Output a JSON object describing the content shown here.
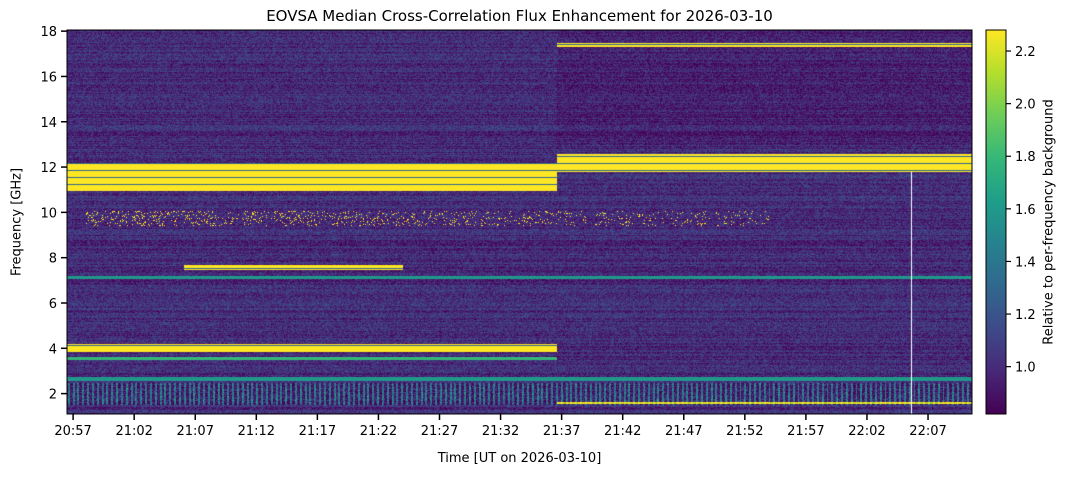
{
  "chart_data": {
    "type": "heatmap",
    "title": "EOVSA Median Cross-Correlation Flux Enhancement for 2026-03-10",
    "xlabel": "Time [UT on 2026-03-10]",
    "ylabel": "Frequency [GHz]",
    "colorbar_label": "Relative to per-frequency background",
    "colormap": "viridis",
    "x_ticks": [
      "20:57",
      "21:02",
      "21:07",
      "21:12",
      "21:17",
      "21:22",
      "21:27",
      "21:32",
      "21:37",
      "21:42",
      "21:47",
      "21:52",
      "21:57",
      "22:02",
      "22:07"
    ],
    "x_tick_minutes": [
      0,
      5,
      10,
      15,
      20,
      25,
      30,
      35,
      40,
      45,
      50,
      55,
      60,
      65,
      70
    ],
    "xlim_minutes_from_2057": [
      -0.5,
      73.6
    ],
    "y_ticks": [
      2,
      4,
      6,
      8,
      10,
      12,
      14,
      16,
      18
    ],
    "ylim": [
      1.1,
      18.05
    ],
    "colorbar_ticks": [
      "1.0",
      "1.2",
      "1.4",
      "1.6",
      "1.8",
      "2.0",
      "2.2"
    ],
    "colorbar_tick_values": [
      1.0,
      1.2,
      1.4,
      1.6,
      1.8,
      2.0,
      2.2
    ],
    "clim": [
      0.82,
      2.28
    ],
    "background_value": 1.0,
    "segment_break_minute": 39.6,
    "features": [
      {
        "name": "band-11-12ghz-early",
        "t": [
          -0.5,
          39.6
        ],
        "f": [
          10.95,
          12.2
        ],
        "value": 2.28
      },
      {
        "name": "band-12ghz-late",
        "t": [
          39.6,
          73.6
        ],
        "f": [
          11.8,
          12.6
        ],
        "value": 2.28
      },
      {
        "name": "band-17ghz-late",
        "t": [
          39.6,
          73.6
        ],
        "f": [
          17.3,
          17.5
        ],
        "value": 2.28
      },
      {
        "name": "band-4ghz-early",
        "t": [
          -0.5,
          39.6
        ],
        "f": [
          3.85,
          4.2
        ],
        "value": 2.28
      },
      {
        "name": "band-7.6ghz",
        "t": [
          9,
          27
        ],
        "f": [
          7.5,
          7.7
        ],
        "value": 2.28
      },
      {
        "name": "band-7.2ghz",
        "t": [
          -0.5,
          73.6
        ],
        "f": [
          7.1,
          7.2
        ],
        "value": 1.6
      },
      {
        "name": "band-3.6ghz-early",
        "t": [
          -0.5,
          39.6
        ],
        "f": [
          3.5,
          3.65
        ],
        "value": 1.8
      },
      {
        "name": "band-2.7ghz",
        "t": [
          -0.5,
          73.6
        ],
        "f": [
          2.6,
          2.75
        ],
        "value": 1.6
      },
      {
        "name": "band-1.6ghz-late",
        "t": [
          39.6,
          73.6
        ],
        "f": [
          1.55,
          1.65
        ],
        "value": 2.28
      },
      {
        "name": "scatter-9.7ghz",
        "t": [
          1,
          57
        ],
        "f": [
          9.4,
          10.1
        ],
        "value": 2.28
      },
      {
        "name": "rfi-1.5-2.5ghz",
        "t": [
          -0.5,
          73.6
        ],
        "f": [
          1.5,
          2.5
        ],
        "value": 1.3
      }
    ],
    "blank_column_minute": 68.6
  }
}
